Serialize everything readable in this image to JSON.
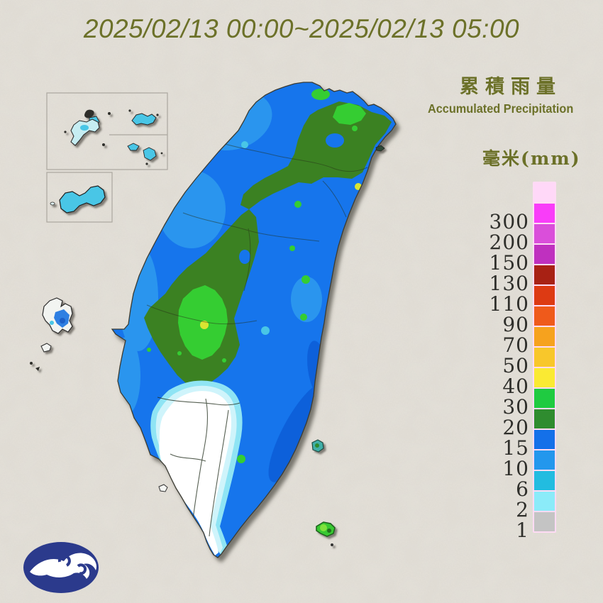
{
  "title": "2025/02/13 00:00~2025/02/13 05:00",
  "legend": {
    "title_zh": "累積雨量",
    "title_en": "Accumulated Precipitation",
    "unit_label": "毫米(mm)",
    "scale": [
      {
        "label": "",
        "color": "#FFD8F8"
      },
      {
        "label": "300",
        "color": "#F93DF9"
      },
      {
        "label": "200",
        "color": "#DA4EDA"
      },
      {
        "label": "150",
        "color": "#BF30BF"
      },
      {
        "label": "130",
        "color": "#A82114"
      },
      {
        "label": "110",
        "color": "#DD3A13"
      },
      {
        "label": "90",
        "color": "#EF5A1B"
      },
      {
        "label": "70",
        "color": "#F6A21E"
      },
      {
        "label": "50",
        "color": "#F8C72B"
      },
      {
        "label": "40",
        "color": "#FAEA33"
      },
      {
        "label": "30",
        "color": "#1FCB41"
      },
      {
        "label": "20",
        "color": "#2F8C2F"
      },
      {
        "label": "15",
        "color": "#1470E9"
      },
      {
        "label": "10",
        "color": "#2397ED"
      },
      {
        "label": "6",
        "color": "#22BCE0"
      },
      {
        "label": "2",
        "color": "#8BEBF9"
      },
      {
        "label": "1",
        "color": "#C4C4C4"
      }
    ]
  },
  "colors": {
    "olive": "#6C7129",
    "background": "#E1DDD5",
    "logo_navy": "#2B3A8C"
  },
  "map_palette": {
    "blue": "#1474EC",
    "mblue": "#2E9AEF",
    "dblue": "#0A5FD8",
    "dgreen": "#3A8122",
    "bgreen": "#35CD33",
    "cyan": "#49C6E6",
    "ygreen": "#D9E433",
    "fringe1": "#CFF4FB",
    "fringe2": "#8FE4F4",
    "zonewhite": "#FFFFFF"
  }
}
